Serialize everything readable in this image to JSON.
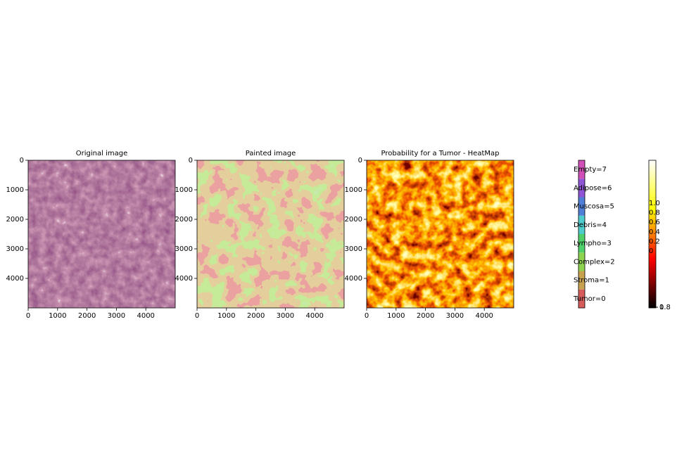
{
  "chart_data": [
    {
      "type": "image",
      "title": "Original image",
      "xlim": [
        0,
        5000
      ],
      "ylim": [
        5000,
        0
      ],
      "xticks": [
        0,
        1000,
        2000,
        3000,
        4000
      ],
      "yticks": [
        0,
        1000,
        2000,
        3000,
        4000
      ],
      "palette": "tissue"
    },
    {
      "type": "image",
      "title": "Painted image",
      "xlim": [
        0,
        5000
      ],
      "ylim": [
        5000,
        0
      ],
      "xticks": [
        0,
        1000,
        2000,
        3000,
        4000
      ],
      "yticks": [
        0,
        1000,
        2000,
        3000,
        4000
      ],
      "palette": "painted"
    },
    {
      "type": "image",
      "title": "Probability for a Tumor - HeatMap",
      "xlim": [
        0,
        5000
      ],
      "ylim": [
        5000,
        0
      ],
      "xticks": [
        0,
        1000,
        2000,
        3000,
        4000
      ],
      "yticks": [
        0,
        1000,
        2000,
        3000,
        4000
      ],
      "palette": "heat"
    },
    {
      "type": "colorbar",
      "categories": [
        "Tumor=0",
        "Stroma=1",
        "Complex=2",
        "Lympho=3",
        "Debris=4",
        "Muscosa=5",
        "Adipose=6",
        "Empty=7"
      ],
      "colors": [
        "#d65b5b",
        "#c9a24f",
        "#8fd450",
        "#4fd06b",
        "#4fcccc",
        "#4f7fd6",
        "#8f55d6",
        "#d14fb8"
      ]
    },
    {
      "type": "gradient",
      "labels": [
        "1.0",
        "0.8",
        "0.6",
        "0.4",
        "0.2",
        "0"
      ],
      "tick_labels": [
        "0.8",
        "1"
      ],
      "colors": [
        "#000000",
        "#ff0000",
        "#ffff00",
        "#ffffff"
      ]
    }
  ]
}
